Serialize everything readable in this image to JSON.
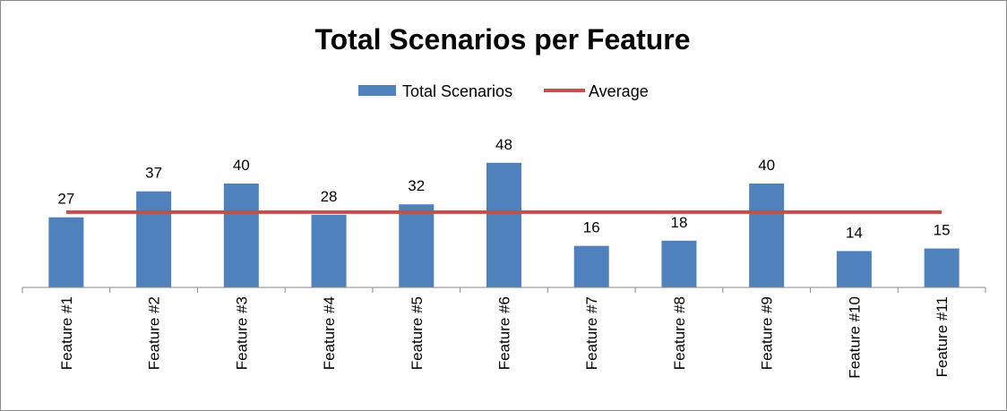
{
  "chart_data": {
    "type": "bar",
    "title": "Total Scenarios per Feature",
    "categories": [
      "Feature #1",
      "Feature #2",
      "Feature #3",
      "Feature #4",
      "Feature #5",
      "Feature #6",
      "Feature #7",
      "Feature #8",
      "Feature #9",
      "Feature #10",
      "Feature #11"
    ],
    "series": [
      {
        "name": "Total Scenarios",
        "type": "bar",
        "color": "#4F81BD",
        "values": [
          27,
          37,
          40,
          28,
          32,
          48,
          16,
          18,
          40,
          14,
          15
        ]
      },
      {
        "name": "Average",
        "type": "line",
        "color": "#C0504D",
        "values": [
          29,
          29,
          29,
          29,
          29,
          29,
          29,
          29,
          29,
          29,
          29
        ]
      }
    ],
    "ylim": [
      0,
      60
    ],
    "grid": false,
    "legend_position": "top",
    "data_labels": true,
    "xlabel": "",
    "ylabel": ""
  }
}
